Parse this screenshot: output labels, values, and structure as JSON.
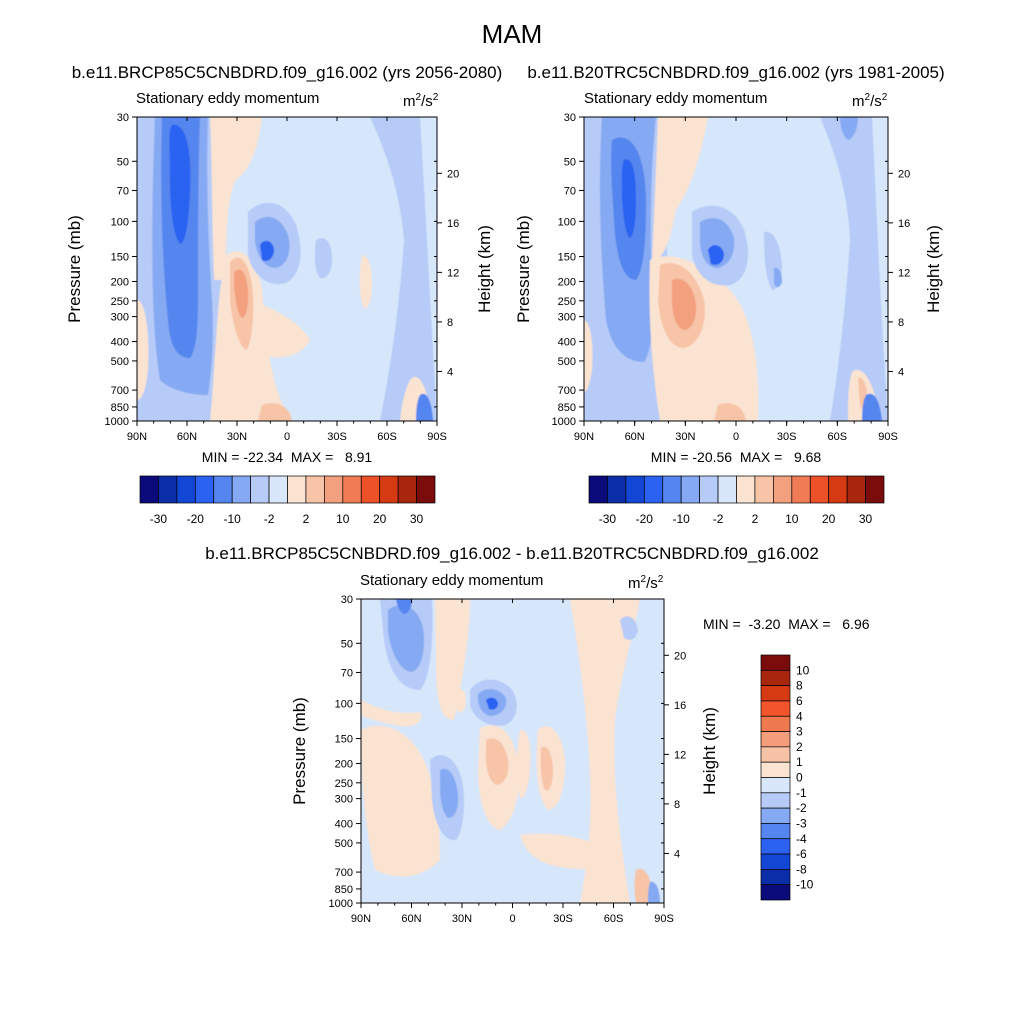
{
  "figure": {
    "title": "MAM"
  },
  "panels": [
    {
      "id": "top-left",
      "header": "b.e11.BRCP85C5CNBDRD.f09_g16.002 (yrs 2056-2080)",
      "subtitle": "Stationary eddy momentum",
      "units_base": "m",
      "units_sup1": "2",
      "units_mid": "/s",
      "units_sup2": "2",
      "minmax": "MIN = -22.34  MAX =   8.91"
    },
    {
      "id": "top-right",
      "header": "b.e11.B20TRC5CNBDRD.f09_g16.002 (yrs 1981-2005)",
      "subtitle": "Stationary eddy momentum",
      "units_base": "m",
      "units_sup1": "2",
      "units_mid": "/s",
      "units_sup2": "2",
      "minmax": "MIN = -20.56  MAX =   9.68"
    },
    {
      "id": "bottom",
      "header": "b.e11.BRCP85C5CNBDRD.f09_g16.002 - b.e11.B20TRC5CNBDRD.f09_g16.002",
      "subtitle": "Stationary eddy momentum",
      "units_base": "m",
      "units_sup1": "2",
      "units_mid": "/s",
      "units_sup2": "2",
      "minmax": "MIN =  -3.20  MAX =   6.96"
    }
  ],
  "chart_data": [
    {
      "type": "heatmap",
      "title": "b.e11.BRCP85C5CNBDRD.f09_g16.002 (yrs 2056-2080)",
      "xlabel": "",
      "ylabel": "Pressure (mb)",
      "y2label": "Height (km)",
      "x_ticks": [
        "90N",
        "60N",
        "30N",
        "0",
        "30S",
        "60S",
        "90S"
      ],
      "pressure_ticks": [
        30,
        50,
        70,
        100,
        150,
        200,
        250,
        300,
        400,
        500,
        700,
        850,
        1000
      ],
      "height_ticks": [
        4,
        8,
        12,
        16,
        20
      ],
      "min": -22.34,
      "max": 8.91,
      "levels": [
        "-30",
        "-20",
        "-10",
        "-2",
        "2",
        "10",
        "20",
        "30"
      ]
    },
    {
      "type": "heatmap",
      "title": "b.e11.B20TRC5CNBDRD.f09_g16.002 (yrs 1981-2005)",
      "xlabel": "",
      "ylabel": "Pressure (mb)",
      "y2label": "Height (km)",
      "x_ticks": [
        "90N",
        "60N",
        "30N",
        "0",
        "30S",
        "60S",
        "90S"
      ],
      "pressure_ticks": [
        30,
        50,
        70,
        100,
        150,
        200,
        250,
        300,
        400,
        500,
        700,
        850,
        1000
      ],
      "height_ticks": [
        4,
        8,
        12,
        16,
        20
      ],
      "min": -20.56,
      "max": 9.68,
      "levels": [
        "-30",
        "-20",
        "-10",
        "-2",
        "2",
        "10",
        "20",
        "30"
      ]
    },
    {
      "type": "heatmap",
      "title": "b.e11.BRCP85C5CNBDRD.f09_g16.002 - b.e11.B20TRC5CNBDRD.f09_g16.002",
      "xlabel": "",
      "ylabel": "Pressure (mb)",
      "y2label": "Height (km)",
      "x_ticks": [
        "90N",
        "60N",
        "30N",
        "0",
        "30S",
        "60S",
        "90S"
      ],
      "pressure_ticks": [
        30,
        50,
        70,
        100,
        150,
        200,
        250,
        300,
        400,
        500,
        700,
        850,
        1000
      ],
      "height_ticks": [
        4,
        8,
        12,
        16,
        20
      ],
      "min": -3.2,
      "max": 6.96,
      "levels": [
        "10",
        "8",
        "6",
        "4",
        "3",
        "2",
        "1",
        "0",
        "-1",
        "-2",
        "-3",
        "-4",
        "-6",
        "-8",
        "-10"
      ]
    }
  ],
  "colors": {
    "scale": [
      "#0a0a7a",
      "#0b2da8",
      "#1247d6",
      "#2b62f2",
      "#5585ee",
      "#86a9f3",
      "#b6cbf7",
      "#d9e7fb",
      "#fbe3d2",
      "#f7c4a8",
      "#f3a07e",
      "#f17b55",
      "#ec5128",
      "#d63a12",
      "#a8260c",
      "#7a0d0b"
    ],
    "bottom_scale": [
      "#7a0d0b",
      "#a8260c",
      "#d63a12",
      "#f2552b",
      "#f07a50",
      "#f39d7a",
      "#f7c3a6",
      "#fbe3d2",
      "#d9e7fb",
      "#b6cbf7",
      "#86a9f3",
      "#5585ee",
      "#2b62f2",
      "#1247d6",
      "#0b2da8",
      "#0a0a7a"
    ],
    "background_field": "#d6e6fb"
  }
}
